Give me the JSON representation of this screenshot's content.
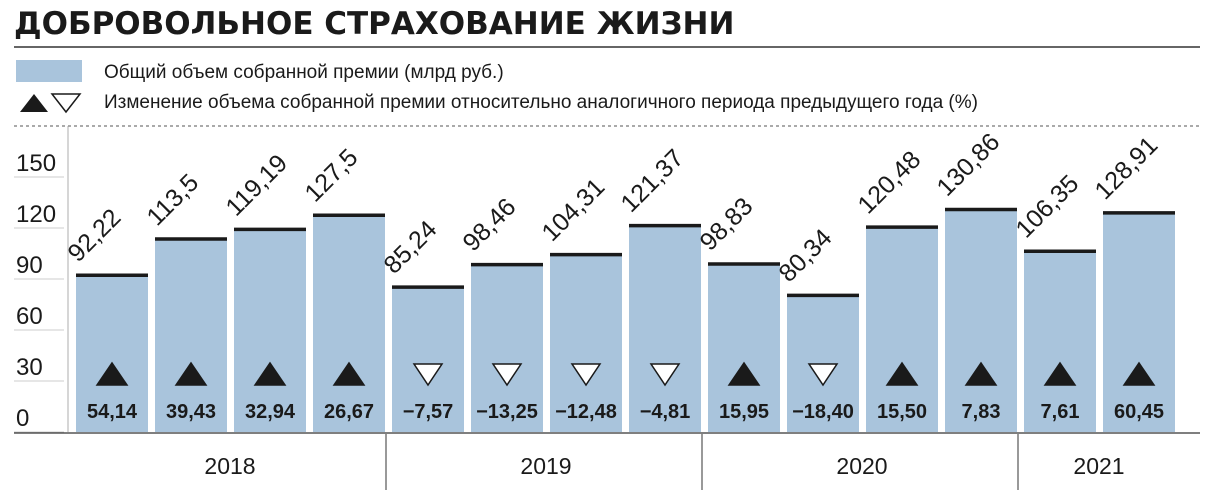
{
  "chart_data": {
    "type": "bar",
    "title": "ДОБРОВОЛЬНОЕ СТРАХОВАНИЕ ЖИЗНИ",
    "categories": [
      "2018",
      "2018",
      "2018",
      "2018",
      "2019",
      "2019",
      "2019",
      "2019",
      "2020",
      "2020",
      "2020",
      "2020",
      "2021",
      "2021"
    ],
    "series": [
      {
        "name": "Общий объем собранной премии (млрд руб.)",
        "color": "#a9c4dc",
        "values": [
          92.22,
          113.5,
          119.19,
          127.5,
          85.24,
          98.46,
          104.31,
          121.37,
          98.83,
          80.34,
          120.48,
          130.86,
          106.35,
          128.91
        ],
        "value_labels": [
          "92,22",
          "113,5",
          "119,19",
          "127,5",
          "85,24",
          "98,46",
          "104,31",
          "121,37",
          "98,83",
          "80,34",
          "120,48",
          "130,86",
          "106,35",
          "128,91"
        ]
      },
      {
        "name": "Изменение объема собранной премии относительно аналогичного периода предыдущего года (%)",
        "color": "#1a1a1a",
        "values": [
          54.14,
          39.43,
          32.94,
          26.67,
          -7.57,
          -13.25,
          -12.48,
          -4.81,
          15.95,
          -18.4,
          15.5,
          7.83,
          7.61,
          60.45
        ],
        "value_labels": [
          "54,14",
          "39,43",
          "32,94",
          "26,67",
          "−7,57",
          "−13,25",
          "−12,48",
          "−4,81",
          "15,95",
          "−18,40",
          "15,50",
          "7,83",
          "7,61",
          "60,45"
        ]
      }
    ],
    "ylim": [
      0,
      180
    ],
    "yticks": [
      0,
      30,
      60,
      90,
      120,
      150
    ]
  }
}
